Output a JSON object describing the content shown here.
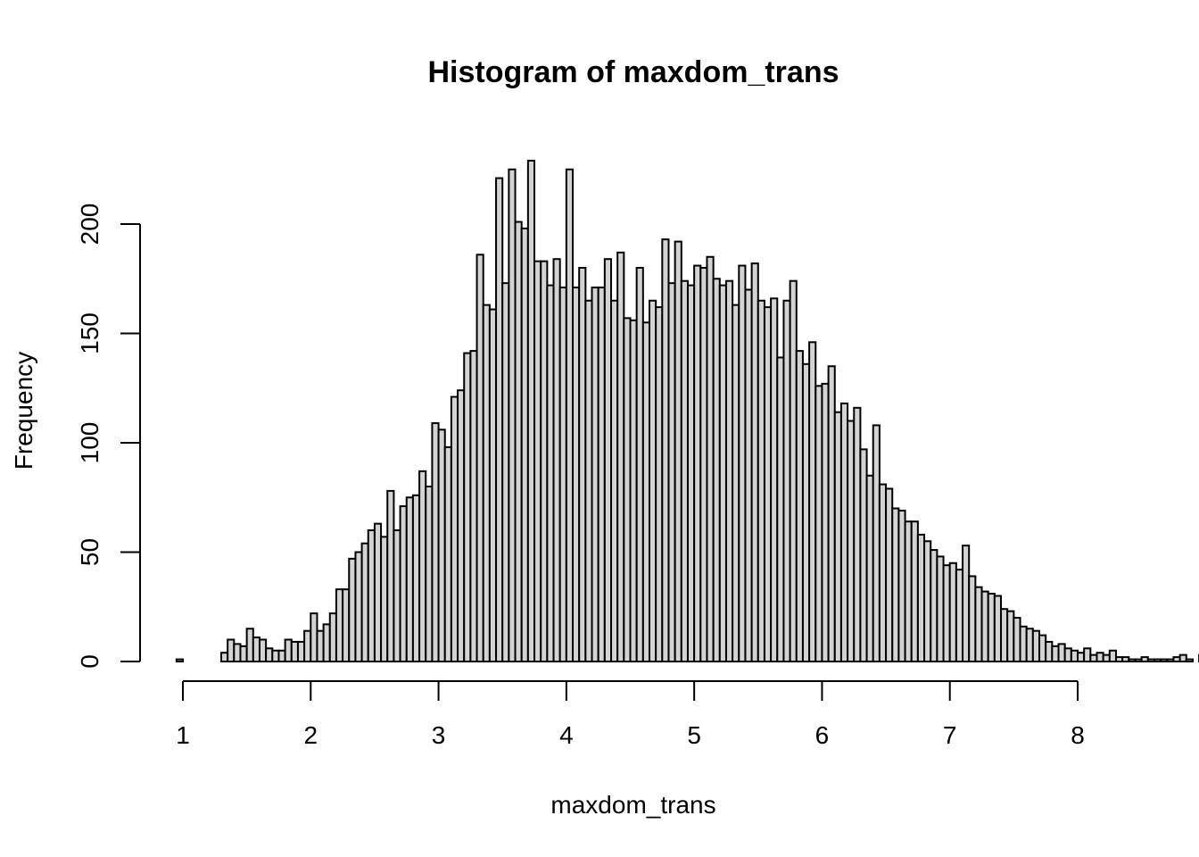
{
  "chart_data": {
    "type": "bar",
    "title": "Histogram of maxdom_trans",
    "xlabel": "maxdom_trans",
    "ylabel": "Frequency",
    "bin_start": 0.95,
    "bin_width": 0.05,
    "values": [
      1,
      0,
      0,
      0,
      0,
      0,
      0,
      4,
      10,
      8,
      7,
      15,
      11,
      10,
      6,
      5,
      5,
      10,
      9,
      9,
      14,
      22,
      14,
      17,
      22,
      33,
      33,
      47,
      50,
      54,
      60,
      63,
      57,
      78,
      60,
      71,
      75,
      76,
      87,
      80,
      109,
      106,
      98,
      121,
      124,
      141,
      142,
      186,
      163,
      161,
      221,
      173,
      225,
      201,
      198,
      229,
      183,
      183,
      172,
      184,
      171,
      225,
      171,
      180,
      165,
      171,
      171,
      184,
      165,
      187,
      157,
      156,
      180,
      155,
      165,
      162,
      193,
      173,
      192,
      174,
      172,
      181,
      180,
      185,
      175,
      172,
      174,
      163,
      181,
      170,
      182,
      165,
      162,
      166,
      139,
      165,
      174,
      142,
      136,
      146,
      126,
      127,
      135,
      114,
      118,
      110,
      116,
      97,
      85,
      108,
      81,
      79,
      70,
      69,
      64,
      64,
      58,
      55,
      51,
      48,
      44,
      45,
      42,
      53,
      39,
      34,
      32,
      31,
      30,
      24,
      23,
      20,
      16,
      15,
      14,
      12,
      9,
      7,
      8,
      6,
      5,
      4,
      6,
      3,
      4,
      3,
      5,
      2,
      2,
      1,
      1,
      2,
      1,
      1,
      1,
      1,
      2,
      3,
      1,
      0,
      3,
      2
    ],
    "xlim": [
      1,
      8
    ],
    "ylim": [
      0,
      200
    ],
    "x_ticks": [
      "1",
      "2",
      "3",
      "4",
      "5",
      "6",
      "7",
      "8"
    ],
    "y_ticks": [
      "0",
      "50",
      "100",
      "150",
      "200"
    ],
    "grid": false,
    "legend": "none"
  }
}
